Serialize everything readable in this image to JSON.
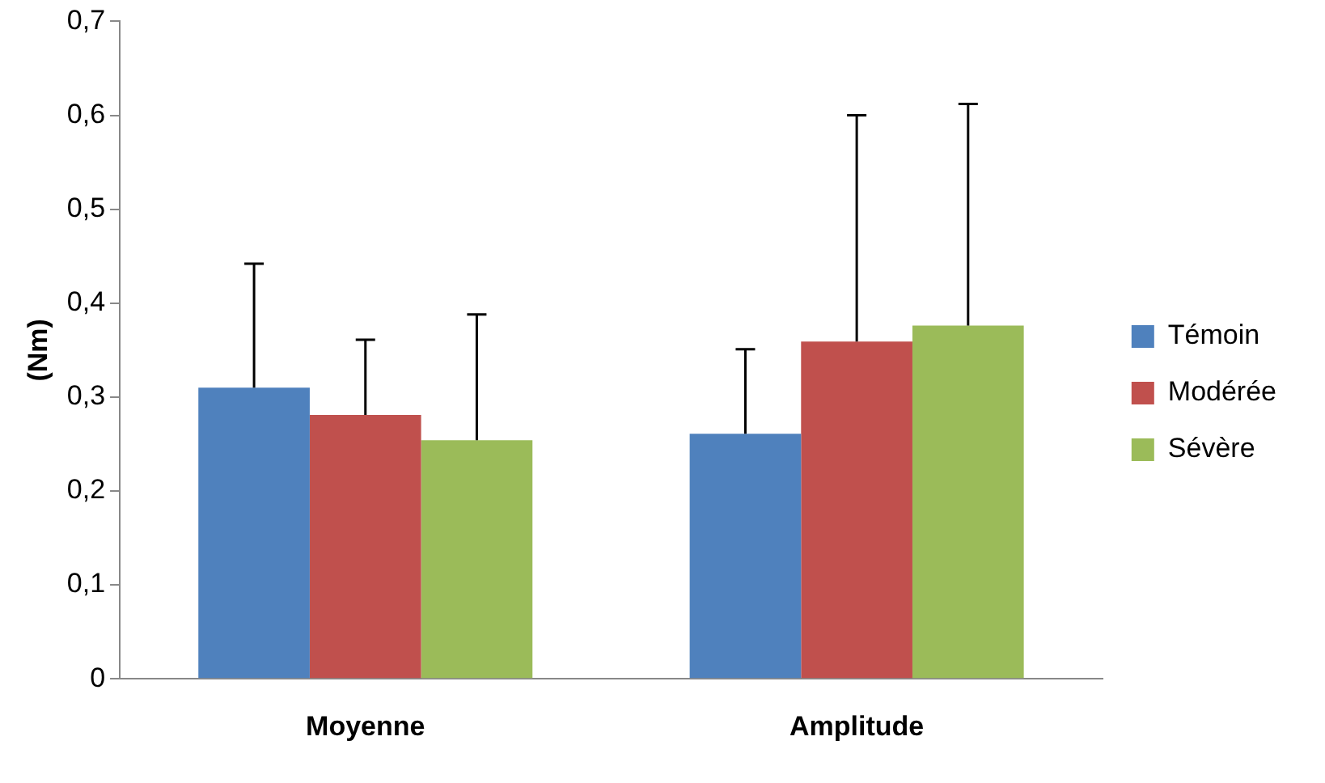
{
  "chart_data": {
    "type": "bar",
    "ylabel": "(Nm)",
    "categories": [
      "Moyenne",
      "Amplitude"
    ],
    "series": [
      {
        "name": "Témoin",
        "color": "#4f81bd",
        "values": [
          0.31,
          0.261
        ],
        "errors": [
          [
            0.31,
            0.442
          ],
          [
            0.261,
            0.351
          ]
        ]
      },
      {
        "name": "Modérée",
        "color": "#c0504d",
        "values": [
          0.281,
          0.359
        ],
        "errors": [
          [
            0.281,
            0.361
          ],
          [
            0.359,
            0.6
          ]
        ]
      },
      {
        "name": "Sévère",
        "color": "#9bbb59",
        "values": [
          0.254,
          0.376
        ],
        "errors": [
          [
            0.254,
            0.388
          ],
          [
            0.376,
            0.612
          ]
        ]
      }
    ],
    "ylim": [
      0,
      0.7
    ],
    "yticks": [
      {
        "value": 0,
        "label": "0"
      },
      {
        "value": 0.1,
        "label": "0,1"
      },
      {
        "value": 0.2,
        "label": "0,2"
      },
      {
        "value": 0.3,
        "label": "0,3"
      },
      {
        "value": 0.4,
        "label": "0,4"
      },
      {
        "value": 0.5,
        "label": "0,5"
      },
      {
        "value": 0.6,
        "label": "0,6"
      },
      {
        "value": 0.7,
        "label": "0,7"
      }
    ],
    "grid": false,
    "legend": "right"
  }
}
